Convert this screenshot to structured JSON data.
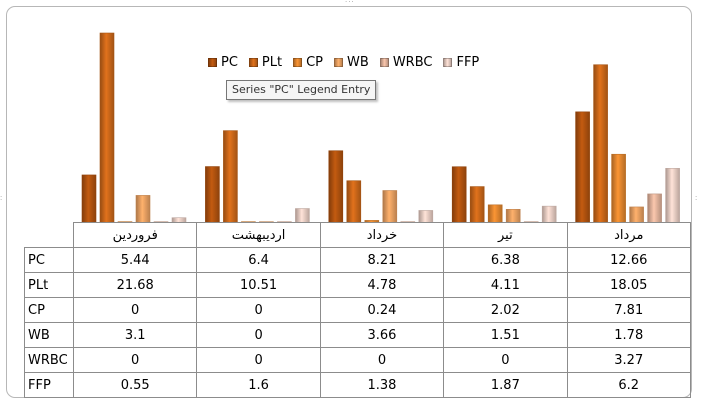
{
  "chart_data": {
    "type": "bar",
    "categories": [
      "فروردین",
      "اردیبهشت",
      "خرداد",
      "تیر",
      "مرداد"
    ],
    "series": [
      {
        "name": "PC",
        "values": [
          5.44,
          6.4,
          8.21,
          6.38,
          12.66
        ],
        "values_text": [
          "5.44",
          "6.4",
          "8.21",
          "6.38",
          "12.66"
        ]
      },
      {
        "name": "PLt",
        "values": [
          21.68,
          10.51,
          4.78,
          4.11,
          18.05
        ],
        "values_text": [
          "21.68",
          "10.51",
          "4.78",
          "4.11",
          "18.05"
        ]
      },
      {
        "name": "CP",
        "values": [
          0,
          0,
          0.24,
          2.02,
          7.81
        ],
        "values_text": [
          "0",
          "0",
          "0.24",
          "2.02",
          "7.81"
        ]
      },
      {
        "name": "WB",
        "values": [
          3.1,
          0,
          3.66,
          1.51,
          1.78
        ],
        "values_text": [
          "3.1",
          "0",
          "3.66",
          "1.51",
          "1.78"
        ]
      },
      {
        "name": "WRBC",
        "values": [
          0,
          0,
          0,
          0,
          3.27
        ],
        "values_text": [
          "0",
          "0",
          "0",
          "0",
          "3.27"
        ]
      },
      {
        "name": "FFP",
        "values": [
          0.55,
          1.6,
          1.38,
          1.87,
          6.2
        ],
        "values_text": [
          "0.55",
          "1.6",
          "1.38",
          "1.87",
          "6.2"
        ]
      }
    ],
    "colors": [
      "#b5540f",
      "#d06a1a",
      "#e88a30",
      "#efa464",
      "#e8b8a0",
      "#eed2c8"
    ],
    "legend_position": "top",
    "grid": false,
    "data_table": true
  },
  "tooltip": "Series \"PC\" Legend Entry"
}
